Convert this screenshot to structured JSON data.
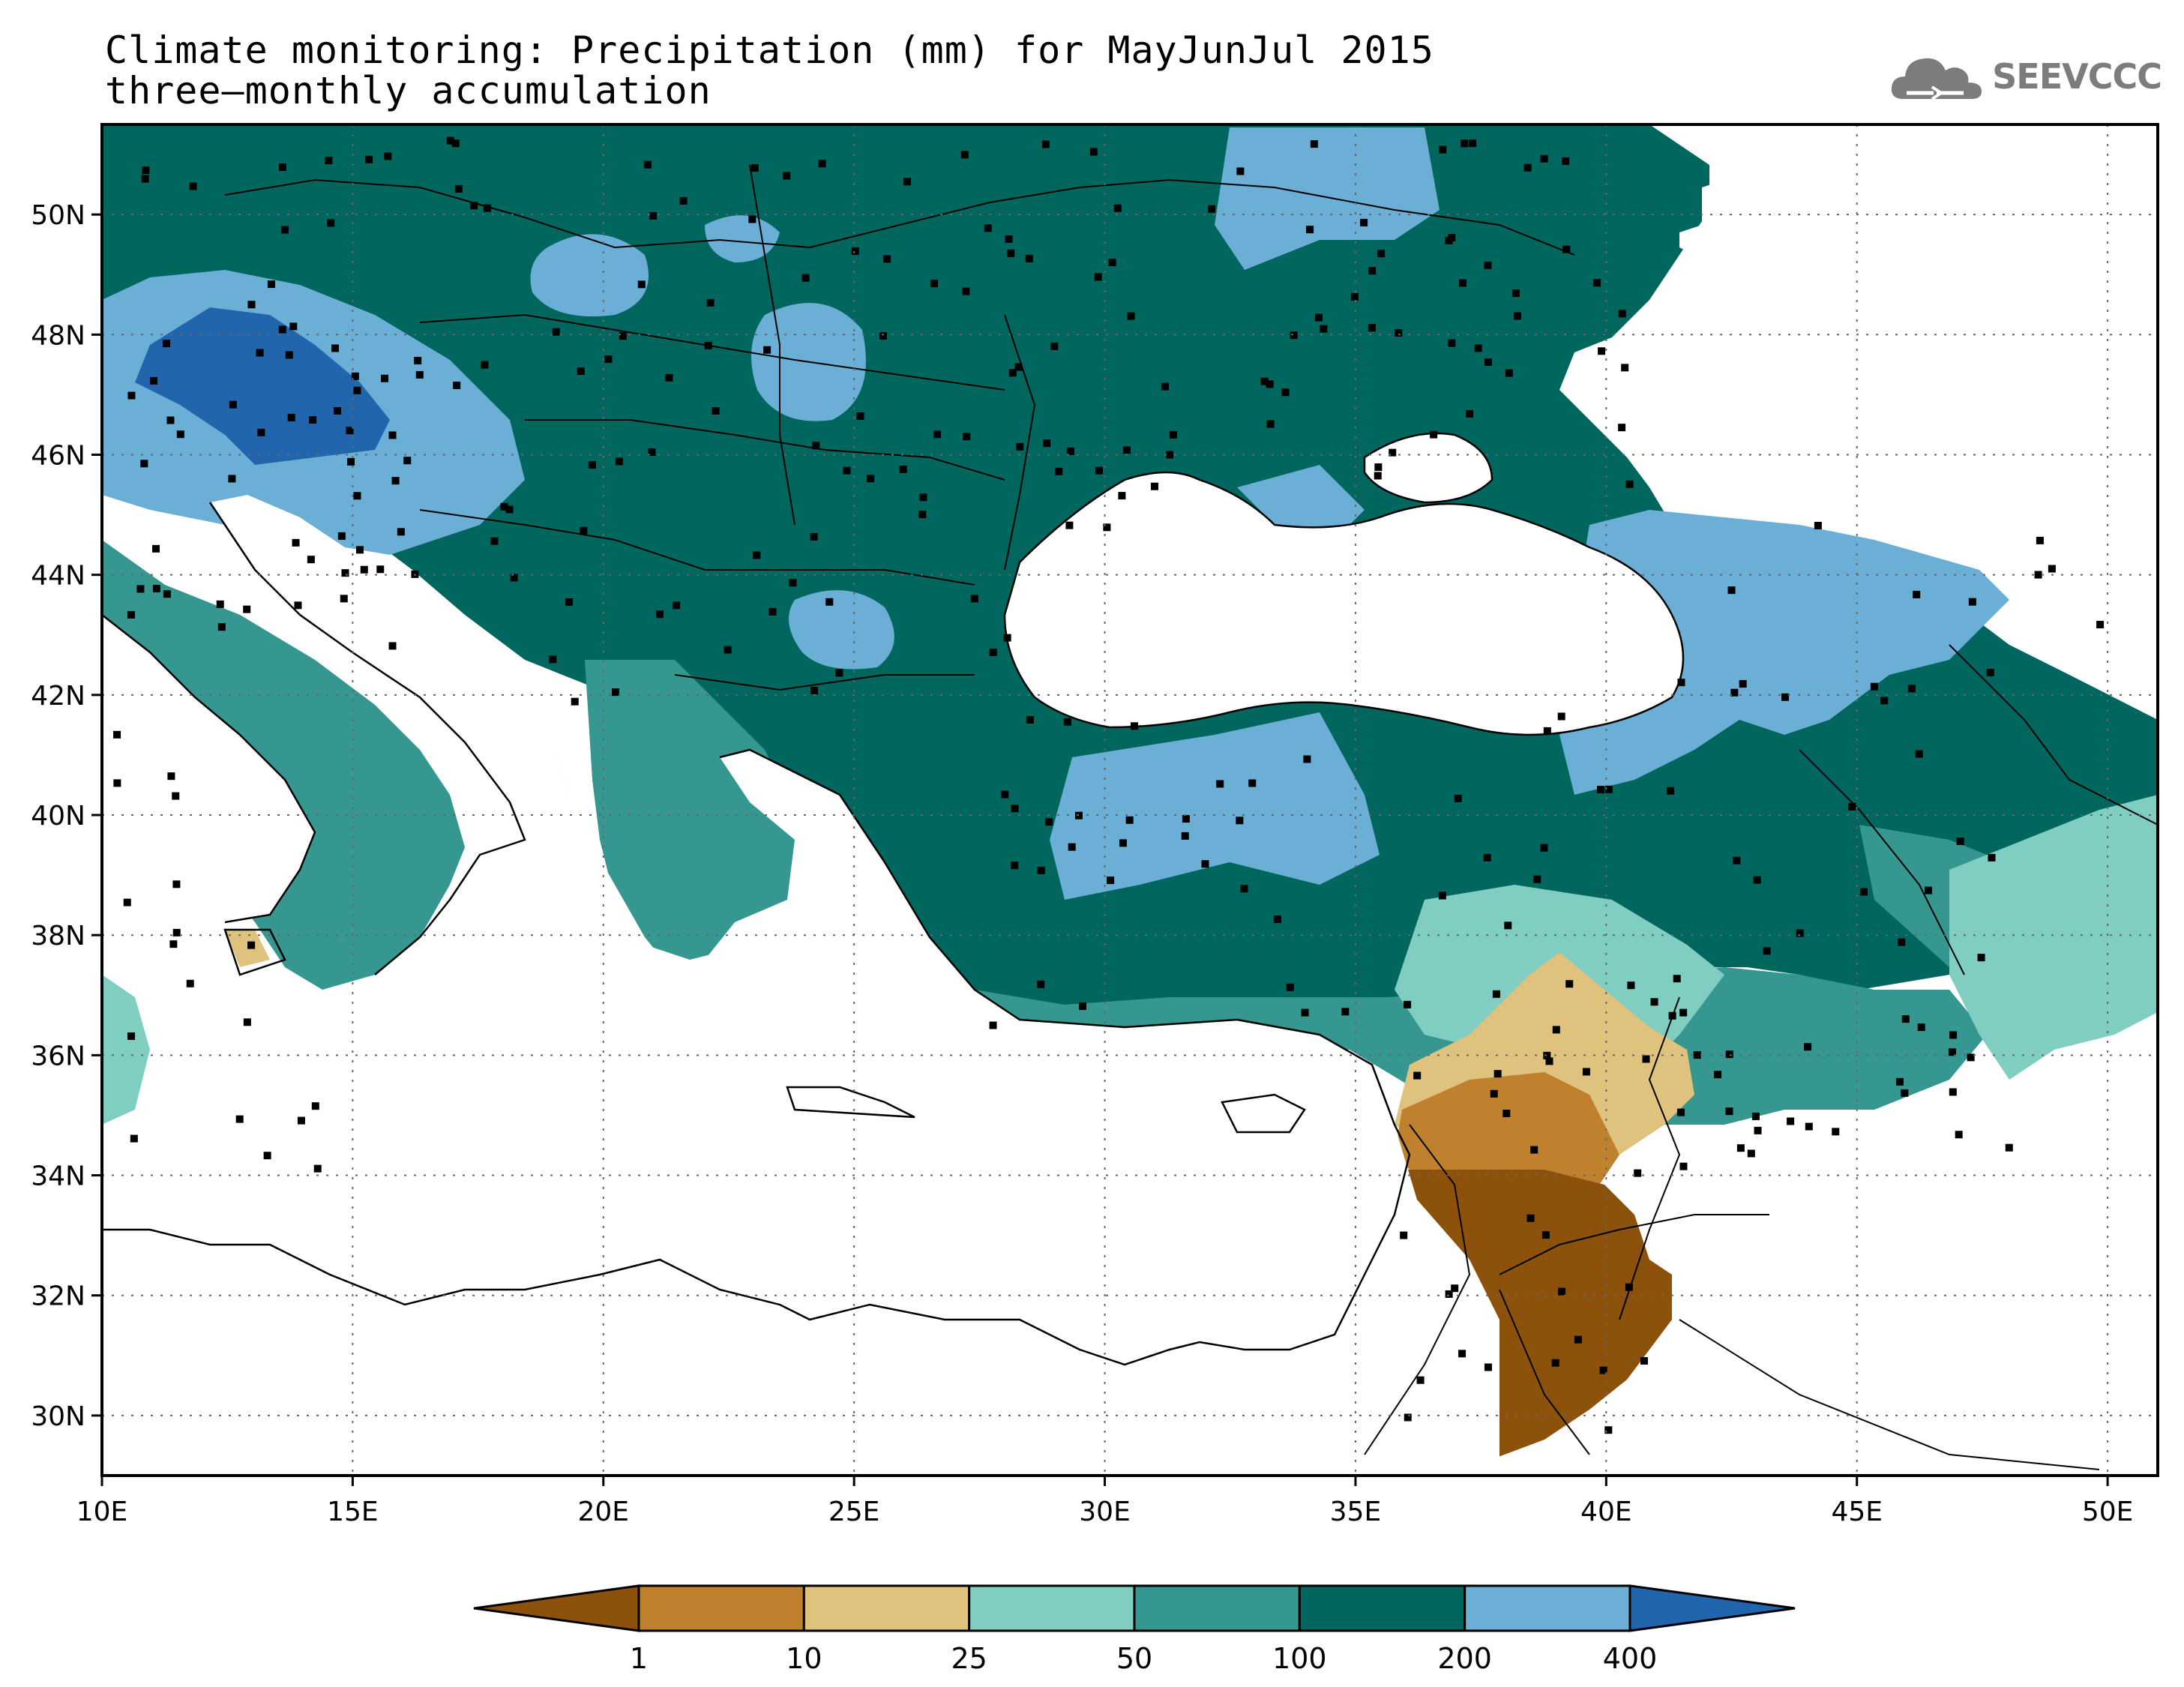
{
  "title": {
    "line1": "Climate monitoring: Precipitation (mm) for MayJunJul 2015",
    "line2": "three–monthly accumulation"
  },
  "logo": {
    "text": "SEEVCCC",
    "icon": "cloud-icon"
  },
  "map": {
    "lon_range": [
      10,
      51
    ],
    "lat_range": [
      29,
      51.5
    ],
    "x_ticks": [
      "10E",
      "15E",
      "20E",
      "25E",
      "30E",
      "35E",
      "40E",
      "45E",
      "50E"
    ],
    "x_tick_values": [
      10,
      15,
      20,
      25,
      30,
      35,
      40,
      45,
      50
    ],
    "y_ticks": [
      "30N",
      "32N",
      "34N",
      "36N",
      "38N",
      "40N",
      "42N",
      "44N",
      "46N",
      "48N",
      "50N"
    ],
    "y_tick_values": [
      30,
      32,
      34,
      36,
      38,
      40,
      42,
      44,
      46,
      48,
      50
    ],
    "grid": true
  },
  "legend": {
    "labels": [
      "1",
      "10",
      "25",
      "50",
      "100",
      "200",
      "400"
    ],
    "colors": [
      "#8c510a",
      "#bf812d",
      "#dfc27d",
      "#80cdc1",
      "#35978f",
      "#01665e",
      "#6baed6",
      "#2166ac"
    ]
  }
}
